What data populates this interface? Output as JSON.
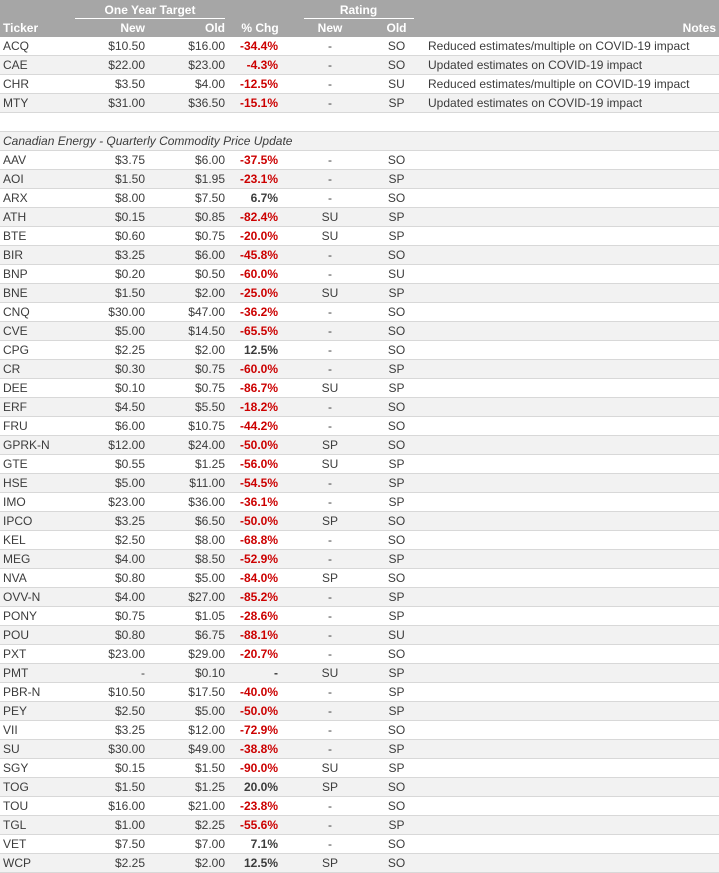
{
  "header": {
    "group_target": "One Year Target",
    "group_rating": "Rating",
    "col_ticker": "Ticker",
    "col_new": "New",
    "col_old": "Old",
    "col_chg": "% Chg",
    "col_rating_new": "New",
    "col_rating_old": "Old",
    "col_notes": "Notes"
  },
  "colors": {
    "header_bg": "#a6a6a6",
    "negative": "#cc0000",
    "stripe": "#f2f2f2"
  },
  "rows_top": [
    {
      "ticker": "ACQ",
      "new": "$10.50",
      "old": "$16.00",
      "chg": "-34.4%",
      "neg": true,
      "rnew": "-",
      "rold": "SO",
      "note": "Reduced estimates/multiple on COVID-19 impact"
    },
    {
      "ticker": "CAE",
      "new": "$22.00",
      "old": "$23.00",
      "chg": "-4.3%",
      "neg": true,
      "rnew": "-",
      "rold": "SO",
      "note": "Updated estimates on COVID-19 impact"
    },
    {
      "ticker": "CHR",
      "new": "$3.50",
      "old": "$4.00",
      "chg": "-12.5%",
      "neg": true,
      "rnew": "-",
      "rold": "SU",
      "note": "Reduced estimates/multiple on COVID-19 impact"
    },
    {
      "ticker": "MTY",
      "new": "$31.00",
      "old": "$36.50",
      "chg": "-15.1%",
      "neg": true,
      "rnew": "-",
      "rold": "SP",
      "note": "Updated estimates on COVID-19 impact"
    }
  ],
  "section_title": "Canadian Energy - Quarterly Commodity Price Update",
  "rows_energy": [
    {
      "ticker": "AAV",
      "new": "$3.75",
      "old": "$6.00",
      "chg": "-37.5%",
      "neg": true,
      "rnew": "-",
      "rold": "SO"
    },
    {
      "ticker": "AOI",
      "new": "$1.50",
      "old": "$1.95",
      "chg": "-23.1%",
      "neg": true,
      "rnew": "-",
      "rold": "SP"
    },
    {
      "ticker": "ARX",
      "new": "$8.00",
      "old": "$7.50",
      "chg": "6.7%",
      "neg": false,
      "rnew": "-",
      "rold": "SO"
    },
    {
      "ticker": "ATH",
      "new": "$0.15",
      "old": "$0.85",
      "chg": "-82.4%",
      "neg": true,
      "rnew": "SU",
      "rold": "SP"
    },
    {
      "ticker": "BTE",
      "new": "$0.60",
      "old": "$0.75",
      "chg": "-20.0%",
      "neg": true,
      "rnew": "SU",
      "rold": "SP"
    },
    {
      "ticker": "BIR",
      "new": "$3.25",
      "old": "$6.00",
      "chg": "-45.8%",
      "neg": true,
      "rnew": "-",
      "rold": "SO"
    },
    {
      "ticker": "BNP",
      "new": "$0.20",
      "old": "$0.50",
      "chg": "-60.0%",
      "neg": true,
      "rnew": "-",
      "rold": "SU"
    },
    {
      "ticker": "BNE",
      "new": "$1.50",
      "old": "$2.00",
      "chg": "-25.0%",
      "neg": true,
      "rnew": "SU",
      "rold": "SP"
    },
    {
      "ticker": "CNQ",
      "new": "$30.00",
      "old": "$47.00",
      "chg": "-36.2%",
      "neg": true,
      "rnew": "-",
      "rold": "SO"
    },
    {
      "ticker": "CVE",
      "new": "$5.00",
      "old": "$14.50",
      "chg": "-65.5%",
      "neg": true,
      "rnew": "-",
      "rold": "SO"
    },
    {
      "ticker": "CPG",
      "new": "$2.25",
      "old": "$2.00",
      "chg": "12.5%",
      "neg": false,
      "rnew": "-",
      "rold": "SO"
    },
    {
      "ticker": "CR",
      "new": "$0.30",
      "old": "$0.75",
      "chg": "-60.0%",
      "neg": true,
      "rnew": "-",
      "rold": "SP"
    },
    {
      "ticker": "DEE",
      "new": "$0.10",
      "old": "$0.75",
      "chg": "-86.7%",
      "neg": true,
      "rnew": "SU",
      "rold": "SP"
    },
    {
      "ticker": "ERF",
      "new": "$4.50",
      "old": "$5.50",
      "chg": "-18.2%",
      "neg": true,
      "rnew": "-",
      "rold": "SO"
    },
    {
      "ticker": "FRU",
      "new": "$6.00",
      "old": "$10.75",
      "chg": "-44.2%",
      "neg": true,
      "rnew": "-",
      "rold": "SO"
    },
    {
      "ticker": "GPRK-N",
      "new": "$12.00",
      "old": "$24.00",
      "chg": "-50.0%",
      "neg": true,
      "rnew": "SP",
      "rold": "SO"
    },
    {
      "ticker": "GTE",
      "new": "$0.55",
      "old": "$1.25",
      "chg": "-56.0%",
      "neg": true,
      "rnew": "SU",
      "rold": "SP"
    },
    {
      "ticker": "HSE",
      "new": "$5.00",
      "old": "$11.00",
      "chg": "-54.5%",
      "neg": true,
      "rnew": "-",
      "rold": "SP"
    },
    {
      "ticker": "IMO",
      "new": "$23.00",
      "old": "$36.00",
      "chg": "-36.1%",
      "neg": true,
      "rnew": "-",
      "rold": "SP"
    },
    {
      "ticker": "IPCO",
      "new": "$3.25",
      "old": "$6.50",
      "chg": "-50.0%",
      "neg": true,
      "rnew": "SP",
      "rold": "SO"
    },
    {
      "ticker": "KEL",
      "new": "$2.50",
      "old": "$8.00",
      "chg": "-68.8%",
      "neg": true,
      "rnew": "-",
      "rold": "SO"
    },
    {
      "ticker": "MEG",
      "new": "$4.00",
      "old": "$8.50",
      "chg": "-52.9%",
      "neg": true,
      "rnew": "-",
      "rold": "SP"
    },
    {
      "ticker": "NVA",
      "new": "$0.80",
      "old": "$5.00",
      "chg": "-84.0%",
      "neg": true,
      "rnew": "SP",
      "rold": "SO"
    },
    {
      "ticker": "OVV-N",
      "new": "$4.00",
      "old": "$27.00",
      "chg": "-85.2%",
      "neg": true,
      "rnew": "-",
      "rold": "SP"
    },
    {
      "ticker": "PONY",
      "new": "$0.75",
      "old": "$1.05",
      "chg": "-28.6%",
      "neg": true,
      "rnew": "-",
      "rold": "SP"
    },
    {
      "ticker": "POU",
      "new": "$0.80",
      "old": "$6.75",
      "chg": "-88.1%",
      "neg": true,
      "rnew": "-",
      "rold": "SU"
    },
    {
      "ticker": "PXT",
      "new": "$23.00",
      "old": "$29.00",
      "chg": "-20.7%",
      "neg": true,
      "rnew": "-",
      "rold": "SO"
    },
    {
      "ticker": "PMT",
      "new": "-",
      "old": "$0.10",
      "chg": "-",
      "neg": false,
      "rnew": "SU",
      "rold": "SP"
    },
    {
      "ticker": "PBR-N",
      "new": "$10.50",
      "old": "$17.50",
      "chg": "-40.0%",
      "neg": true,
      "rnew": "-",
      "rold": "SP"
    },
    {
      "ticker": "PEY",
      "new": "$2.50",
      "old": "$5.00",
      "chg": "-50.0%",
      "neg": true,
      "rnew": "-",
      "rold": "SP"
    },
    {
      "ticker": "VII",
      "new": "$3.25",
      "old": "$12.00",
      "chg": "-72.9%",
      "neg": true,
      "rnew": "-",
      "rold": "SO"
    },
    {
      "ticker": "SU",
      "new": "$30.00",
      "old": "$49.00",
      "chg": "-38.8%",
      "neg": true,
      "rnew": "-",
      "rold": "SP"
    },
    {
      "ticker": "SGY",
      "new": "$0.15",
      "old": "$1.50",
      "chg": "-90.0%",
      "neg": true,
      "rnew": "SU",
      "rold": "SP"
    },
    {
      "ticker": "TOG",
      "new": "$1.50",
      "old": "$1.25",
      "chg": "20.0%",
      "neg": false,
      "rnew": "SP",
      "rold": "SO"
    },
    {
      "ticker": "TOU",
      "new": "$16.00",
      "old": "$21.00",
      "chg": "-23.8%",
      "neg": true,
      "rnew": "-",
      "rold": "SO"
    },
    {
      "ticker": "TGL",
      "new": "$1.00",
      "old": "$2.25",
      "chg": "-55.6%",
      "neg": true,
      "rnew": "-",
      "rold": "SP"
    },
    {
      "ticker": "VET",
      "new": "$7.50",
      "old": "$7.00",
      "chg": "7.1%",
      "neg": false,
      "rnew": "-",
      "rold": "SO"
    },
    {
      "ticker": "WCP",
      "new": "$2.25",
      "old": "$2.00",
      "chg": "12.5%",
      "neg": false,
      "rnew": "SP",
      "rold": "SO"
    }
  ]
}
